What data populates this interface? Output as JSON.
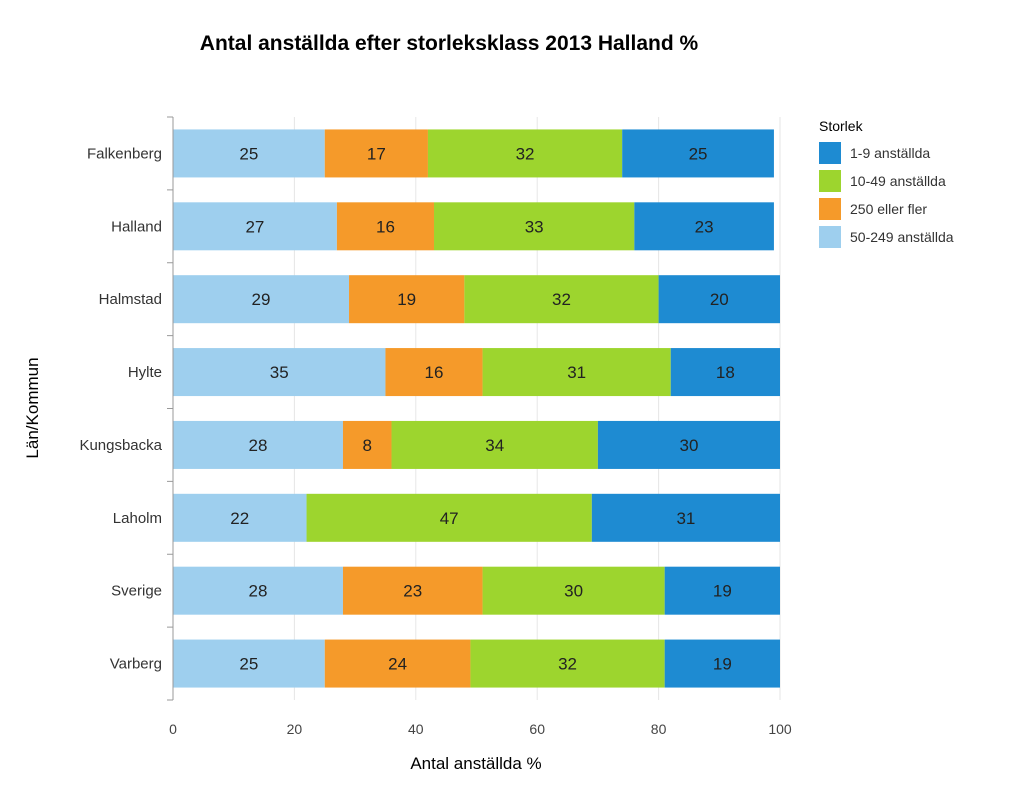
{
  "chart_data": {
    "type": "bar",
    "orientation": "horizontal",
    "stacked": true,
    "title": "Antal anställda efter storleksklass 2013 Halland %",
    "xlabel": "Antal anställda %",
    "ylabel": "Län/Kommun",
    "xlim": [
      0,
      100
    ],
    "xticks": [
      "0",
      "20",
      "40",
      "60",
      "80",
      "100"
    ],
    "grid": true,
    "legend_position": "right",
    "legend_title": "Storlek",
    "categories": [
      "Falkenberg",
      "Halland",
      "Halmstad",
      "Hylte",
      "Kungsbacka",
      "Laholm",
      "Sverige",
      "Varberg"
    ],
    "series": [
      {
        "name": "50-249 anställda",
        "color": "#9ecfee",
        "values": [
          25,
          27,
          29,
          35,
          28,
          22,
          28,
          25
        ]
      },
      {
        "name": "250 eller fler",
        "color": "#f59a2a",
        "values": [
          17,
          16,
          19,
          16,
          8,
          0,
          23,
          24
        ]
      },
      {
        "name": "10-49 anställda",
        "color": "#9dd52e",
        "values": [
          32,
          33,
          32,
          31,
          34,
          47,
          30,
          32
        ]
      },
      {
        "name": "1-9 anställda",
        "color": "#1e8bd2",
        "values": [
          25,
          23,
          20,
          18,
          30,
          31,
          19,
          19
        ]
      }
    ],
    "legend_order": [
      "1-9 anställda",
      "10-49 anställda",
      "250 eller fler",
      "50-249 anställda"
    ]
  }
}
